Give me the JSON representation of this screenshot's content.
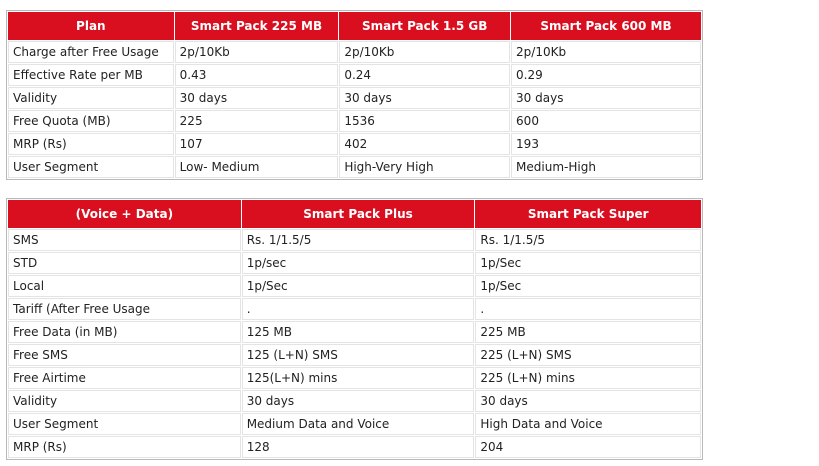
{
  "plan_table": {
    "headers": [
      "Plan",
      "Smart Pack 225 MB",
      "Smart Pack 1.5 GB",
      "Smart Pack 600 MB"
    ],
    "rows": [
      [
        "Charge after Free Usage",
        "2p/10Kb",
        "2p/10Kb",
        "2p/10Kb"
      ],
      [
        "Effective Rate per MB",
        "0.43",
        "0.24",
        "0.29"
      ],
      [
        "Validity",
        "30 days",
        "30 days",
        "30 days"
      ],
      [
        "Free Quota (MB)",
        "225",
        "1536",
        "600"
      ],
      [
        "MRP (Rs)",
        "107",
        "402",
        "193"
      ],
      [
        "User Segment",
        "Low- Medium",
        "High-Very High",
        "Medium-High"
      ]
    ]
  },
  "voice_table": {
    "headers": [
      "(Voice + Data)",
      "Smart Pack Plus",
      "Smart Pack Super"
    ],
    "rows": [
      [
        "SMS",
        "Rs. 1/1.5/5",
        "Rs. 1/1.5/5"
      ],
      [
        "STD",
        "1p/sec",
        "1p/Sec"
      ],
      [
        "Local",
        "1p/Sec",
        "1p/Sec"
      ],
      [
        "Tariff (After Free Usage",
        ".",
        "."
      ],
      [
        "Free Data (in MB)",
        "125 MB",
        "225 MB"
      ],
      [
        "Free SMS",
        "125 (L+N) SMS",
        "225 (L+N) SMS"
      ],
      [
        "Free Airtime",
        "125(L+N) mins",
        "225 (L+N) mins"
      ],
      [
        "Validity",
        "30 days",
        "30 days"
      ],
      [
        "User Segment",
        "Medium Data and Voice",
        "High Data and Voice"
      ],
      [
        "MRP (Rs)",
        "128",
        "204"
      ]
    ]
  }
}
